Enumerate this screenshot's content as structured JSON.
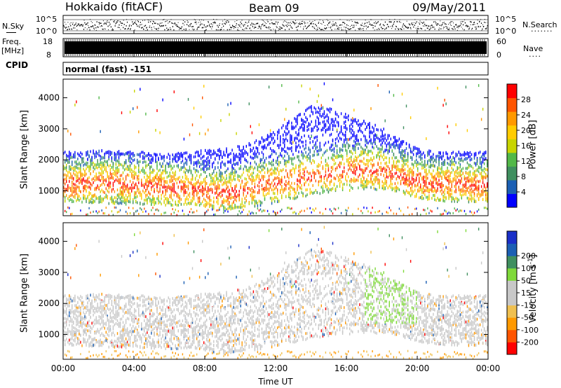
{
  "header": {
    "title": "Hokkaido (fitACF)",
    "beam": "Beam 09",
    "date": "09/May/2011"
  },
  "noise_panel": {
    "left_label": "N.Sky",
    "right_label": "N.Search",
    "y_top": "10^5",
    "y_bottom": "10^0",
    "y_top_right": "10^5",
    "y_bottom_right": "10^0"
  },
  "freq_panel": {
    "left_label_top": "Freq.",
    "left_label_unit": "[MHz]",
    "right_label": "Nave",
    "y_left_top": "18",
    "y_left_bottom": "8",
    "y_right_top": "60",
    "y_right_bottom": "0"
  },
  "cpid": {
    "label": "CPID",
    "value": "normal (fast) -151"
  },
  "colors": {
    "power_scale": [
      "#0000ff",
      "#1b5fb4",
      "#3f8f5f",
      "#52b848",
      "#c8d400",
      "#ffcc00",
      "#ff9900",
      "#ff5500",
      "#ff0000"
    ],
    "velocity_scale": [
      "#ff0000",
      "#ff5500",
      "#ff9900",
      "#f0c050",
      "#c8c8c8",
      "#c8c8c8",
      "#7fd93a",
      "#3f8f5f",
      "#1b5fb4",
      "#1a2fc8"
    ]
  },
  "chart_data": [
    {
      "type": "heatmap",
      "name": "power",
      "ylabel": "Slant Range [km]",
      "ylim": [
        200,
        4600
      ],
      "y_ticks": [
        1000,
        2000,
        3000,
        4000
      ],
      "xlim": [
        0,
        24
      ],
      "x_ticks": [
        0,
        4,
        8,
        12,
        16,
        20,
        24
      ],
      "colorbar": {
        "label": "Power [dB]",
        "range": [
          0,
          32
        ],
        "ticks": [
          4,
          8,
          12,
          16,
          20,
          24,
          28
        ]
      },
      "lower_edge_km": [
        700,
        680,
        650,
        620,
        600,
        600,
        580,
        560,
        520,
        430,
        480,
        560,
        660,
        780,
        900,
        1000,
        1050,
        1080,
        1050,
        980,
        820,
        720,
        700,
        680,
        680
      ],
      "upper_edge_km": [
        2300,
        2320,
        2350,
        2330,
        2300,
        2280,
        2250,
        2300,
        2350,
        2400,
        2500,
        2700,
        3000,
        3400,
        3800,
        3700,
        3500,
        3300,
        3100,
        2700,
        2400,
        2300,
        2300,
        2300,
        2300
      ],
      "core_km": [
        1250,
        1250,
        1300,
        1300,
        1250,
        1200,
        1150,
        1100,
        1000,
        950,
        1050,
        1200,
        1300,
        1400,
        1500,
        1600,
        1700,
        1750,
        1650,
        1500,
        1350,
        1250,
        1250,
        1200,
        1200
      ]
    },
    {
      "type": "heatmap",
      "name": "velocity",
      "ylabel": "Slant Range [km]",
      "ylim": [
        200,
        4600
      ],
      "y_ticks": [
        1000,
        2000,
        3000,
        4000
      ],
      "xlim": [
        0,
        24
      ],
      "x_ticks": [
        0,
        4,
        8,
        12,
        16,
        20,
        24
      ],
      "colorbar": {
        "label": "Velocity [m s^-1]",
        "ticks": [
          -200,
          -100,
          -50,
          -15,
          15,
          50,
          100,
          200
        ]
      }
    }
  ],
  "x_tick_labels": [
    "00:00",
    "04:00",
    "08:00",
    "12:00",
    "16:00",
    "20:00",
    "00:00"
  ],
  "xlabel": "Time UT",
  "y_tick_labels": [
    "1000",
    "2000",
    "3000",
    "4000"
  ],
  "power_tick_labels": [
    "4",
    "8",
    "12",
    "16",
    "20",
    "24",
    "28"
  ],
  "power_label": "Power [dB]",
  "velocity_tick_labels": [
    "-200",
    "-100",
    "-50",
    "-15",
    "15",
    "50",
    "100",
    "200"
  ],
  "velocity_label_main": "Velocity [m s",
  "velocity_label_sup": "-1",
  "velocity_label_end": "]"
}
